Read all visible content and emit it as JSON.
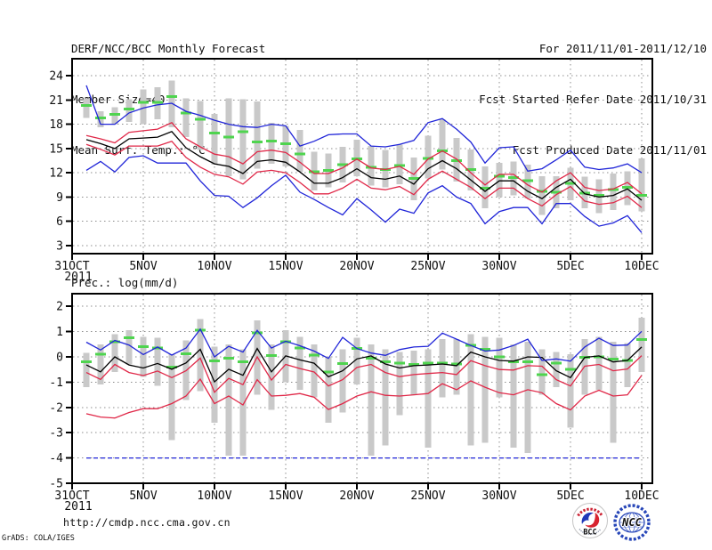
{
  "header": {
    "title": "DERF/NCC/BCC Monthly Forecast",
    "member_size": "Member Size=40",
    "for_range": "For 2011/11/01-2011/12/10",
    "fcst_refer": "Fcst Started Refer Date 2011/10/31",
    "fcst_produced": "Fcst Produced Date 2011/11/01"
  },
  "footer": {
    "url": "http://cmdp.ncc.cma.gov.cn",
    "credit": "GrADS: COLA/IGES",
    "logos": {
      "bcc_label": "BCC",
      "ncc_label": "NCC"
    }
  },
  "colors": {
    "ensemble_envelope": "#2025d8",
    "sd_band": "#e02848",
    "ensemble_mean": "#000000",
    "climatology_mean": "#4fd44f",
    "climatology_range": "#c9c9c9",
    "grid": "#8c8c8c",
    "axis": "#000000"
  },
  "chart_data": [
    {
      "type": "line",
      "title": "Mean Surf. Temp.: °C",
      "x_axis": "days from 31OCT2011, data daily 01NOV-10DEC",
      "first_data_day": 1,
      "xlim_days": [
        0,
        40.75
      ],
      "ylim": [
        2,
        26.1
      ],
      "y_ticks": [
        3,
        6,
        9,
        12,
        15,
        18,
        21,
        24
      ],
      "x_ticks": [
        {
          "day": 0,
          "label": "31OCT",
          "sublabel": "2011"
        },
        {
          "day": 5,
          "label": "5NOV"
        },
        {
          "day": 10,
          "label": "10NOV"
        },
        {
          "day": 15,
          "label": "15NOV"
        },
        {
          "day": 20,
          "label": "20NOV"
        },
        {
          "day": 25,
          "label": "25NOV"
        },
        {
          "day": 30,
          "label": "30NOV"
        },
        {
          "day": 35,
          "label": "5DEC"
        },
        {
          "day": 40,
          "label": "10DEC"
        }
      ],
      "series": [
        {
          "name": "climatology_range",
          "type": "bar",
          "color": "#c9c9c9",
          "low": [
            18.8,
            17.6,
            18.0,
            18.3,
            18.0,
            18.6,
            17.6,
            16.4,
            14.8,
            13.0,
            11.6,
            11.2,
            12.5,
            13.1,
            12.8,
            12.1,
            9.8,
            10.2,
            10.8,
            11.6,
            10.4,
            10.2,
            10.6,
            8.6,
            11.3,
            12.4,
            10.9,
            9.8,
            7.6,
            9.0,
            9.2,
            8.8,
            6.8,
            7.6,
            8.6,
            7.6,
            7.0,
            7.4,
            8.0,
            7.2
          ],
          "high": [
            21.2,
            19.6,
            20.1,
            21.1,
            22.3,
            22.6,
            23.4,
            21.2,
            20.9,
            19.3,
            21.2,
            21.1,
            20.8,
            18.2,
            17.8,
            17.3,
            14.6,
            14.4,
            15.2,
            16.1,
            15.3,
            14.8,
            15.5,
            13.9,
            16.6,
            18.6,
            16.3,
            14.9,
            12.8,
            13.2,
            13.4,
            13.0,
            11.6,
            11.6,
            12.6,
            11.5,
            11.2,
            11.9,
            12.2,
            13.8
          ]
        },
        {
          "name": "climatology_mean",
          "type": "marker",
          "color": "#4fd44f",
          "values": [
            20.3,
            18.8,
            19.2,
            19.9,
            20.7,
            20.7,
            21.4,
            19.4,
            18.6,
            16.9,
            16.4,
            17.1,
            15.8,
            15.9,
            15.6,
            14.3,
            12.1,
            12.3,
            13.0,
            13.7,
            12.7,
            12.4,
            12.9,
            11.3,
            13.8,
            14.7,
            13.5,
            12.4,
            10.1,
            11.6,
            11.4,
            11.0,
            9.7,
            9.6,
            10.7,
            9.5,
            9.2,
            9.9,
            10.2,
            9.2
          ]
        },
        {
          "name": "mean_minus_sd",
          "type": "line",
          "color": "#e02848",
          "values": [
            15.5,
            14.9,
            14.2,
            15.3,
            15.3,
            15.3,
            15.9,
            13.9,
            12.7,
            11.8,
            11.5,
            10.6,
            12.1,
            12.3,
            12.0,
            10.8,
            9.4,
            9.4,
            10.1,
            11.2,
            10.1,
            9.9,
            10.3,
            9.3,
            11.2,
            12.2,
            11.2,
            10.2,
            8.8,
            10.1,
            10.1,
            8.8,
            7.9,
            9.3,
            10.3,
            8.5,
            8.1,
            8.3,
            9.1,
            7.7
          ]
        },
        {
          "name": "mean_plus_sd",
          "type": "line",
          "color": "#e02848",
          "values": [
            16.6,
            16.2,
            15.7,
            17.0,
            17.2,
            17.4,
            18.2,
            16.2,
            15.2,
            14.3,
            14.0,
            13.1,
            14.6,
            14.8,
            14.5,
            13.3,
            11.9,
            11.9,
            12.6,
            13.7,
            12.6,
            12.4,
            12.8,
            11.8,
            13.7,
            14.7,
            13.7,
            12.0,
            10.5,
            11.8,
            11.8,
            10.5,
            9.6,
            11.0,
            12.0,
            10.2,
            9.8,
            10.0,
            10.8,
            9.4
          ]
        },
        {
          "name": "ensemble_mean",
          "type": "line",
          "color": "#000000",
          "values": [
            16.1,
            15.6,
            15.0,
            16.2,
            16.3,
            16.4,
            17.1,
            15.1,
            14.0,
            13.1,
            12.8,
            11.9,
            13.4,
            13.6,
            13.3,
            12.1,
            10.7,
            10.7,
            11.4,
            12.5,
            11.4,
            11.2,
            11.6,
            10.6,
            12.5,
            13.5,
            12.5,
            11.1,
            9.7,
            11.0,
            11.0,
            9.7,
            8.8,
            10.2,
            11.2,
            9.4,
            9.0,
            9.2,
            10.0,
            8.6
          ]
        },
        {
          "name": "ensemble_max",
          "type": "line",
          "color": "#2025d8",
          "values": [
            22.8,
            18.0,
            18.0,
            19.4,
            20.0,
            20.4,
            20.6,
            19.6,
            19.1,
            18.5,
            18.0,
            17.7,
            17.6,
            18.0,
            17.8,
            15.3,
            15.9,
            16.7,
            16.8,
            16.8,
            15.3,
            15.2,
            15.5,
            16.0,
            18.2,
            18.7,
            17.4,
            15.8,
            13.2,
            15.1,
            15.2,
            12.2,
            12.5,
            13.6,
            14.8,
            12.7,
            12.4,
            12.6,
            13.1,
            12.0
          ]
        },
        {
          "name": "ensemble_min",
          "type": "line",
          "color": "#2025d8",
          "values": [
            12.3,
            13.4,
            12.1,
            13.9,
            14.1,
            13.2,
            13.2,
            13.2,
            11.0,
            9.2,
            9.1,
            7.7,
            8.9,
            10.4,
            11.7,
            9.6,
            8.7,
            7.7,
            6.8,
            8.8,
            7.4,
            5.9,
            7.5,
            7.0,
            9.5,
            10.4,
            9.0,
            8.2,
            5.7,
            7.2,
            7.7,
            7.7,
            5.7,
            8.2,
            8.2,
            6.6,
            5.4,
            5.8,
            6.7,
            4.6
          ]
        }
      ]
    },
    {
      "type": "line",
      "title": "Prec.: log(mm/d)",
      "x_axis": "days from 31OCT2011, data daily 01NOV-10DEC",
      "first_data_day": 1,
      "xlim_days": [
        0,
        40.75
      ],
      "ylim": [
        -5,
        2.5
      ],
      "y_ticks": [
        -5,
        -4,
        -3,
        -2,
        -1,
        0,
        1,
        2
      ],
      "x_ticks": [
        {
          "day": 0,
          "label": "31OCT",
          "sublabel": "2011"
        },
        {
          "day": 5,
          "label": "5NOV"
        },
        {
          "day": 10,
          "label": "10NOV"
        },
        {
          "day": 15,
          "label": "15NOV"
        },
        {
          "day": 20,
          "label": "20NOV"
        },
        {
          "day": 25,
          "label": "25NOV"
        },
        {
          "day": 30,
          "label": "30NOV"
        },
        {
          "day": 35,
          "label": "5DEC"
        },
        {
          "day": 40,
          "label": "10DEC"
        }
      ],
      "series": [
        {
          "name": "climatology_range",
          "type": "bar",
          "color": "#c9c9c9",
          "low": [
            -1.2,
            -1.1,
            -0.6,
            -0.3,
            -0.8,
            -1.15,
            -3.3,
            -1.7,
            -1.35,
            -2.6,
            -3.9,
            -3.9,
            -1.5,
            -2.1,
            -1.0,
            -1.3,
            -1.6,
            -2.6,
            -2.2,
            -1.1,
            -3.9,
            -3.5,
            -2.3,
            -1.5,
            -3.6,
            -1.6,
            -1.5,
            -3.5,
            -3.4,
            -1.6,
            -3.6,
            -3.8,
            -1.5,
            -1.2,
            -2.8,
            -1.5,
            -1.3,
            -3.4,
            -1.2,
            -0.6
          ],
          "high": [
            0.15,
            0.5,
            0.9,
            1.05,
            0.8,
            0.75,
            0.1,
            0.65,
            1.5,
            0.4,
            0.5,
            0.3,
            1.45,
            0.5,
            1.05,
            0.8,
            0.5,
            0.0,
            0.3,
            0.75,
            0.5,
            0.3,
            0.2,
            0.25,
            0.3,
            0.7,
            0.7,
            0.9,
            0.8,
            0.75,
            0.5,
            0.6,
            0.3,
            0.2,
            0.1,
            0.7,
            0.8,
            0.6,
            0.55,
            1.55
          ]
        },
        {
          "name": "climatology_mean",
          "type": "marker",
          "color": "#4fd44f",
          "values": [
            -0.2,
            0.1,
            0.6,
            0.75,
            0.4,
            0.35,
            -0.4,
            0.12,
            1.05,
            -0.15,
            -0.05,
            -0.2,
            0.95,
            0.05,
            0.6,
            0.35,
            0.07,
            -0.6,
            -0.27,
            0.33,
            -0.05,
            -0.2,
            -0.25,
            -0.3,
            -0.25,
            -0.25,
            -0.28,
            0.45,
            0.3,
            0.0,
            -0.2,
            -0.2,
            -0.7,
            -0.25,
            -0.5,
            -0.02,
            0.0,
            -0.08,
            -0.14,
            0.68
          ]
        },
        {
          "name": "mean_minus_sd",
          "type": "line",
          "color": "#e02848",
          "values": [
            -2.25,
            -2.38,
            -2.42,
            -2.2,
            -2.05,
            -2.05,
            -1.85,
            -1.55,
            -0.88,
            -1.85,
            -1.55,
            -1.9,
            -0.9,
            -1.55,
            -1.52,
            -1.45,
            -1.6,
            -2.08,
            -1.85,
            -1.55,
            -1.38,
            -1.52,
            -1.55,
            -1.5,
            -1.45,
            -1.06,
            -1.3,
            -0.95,
            -1.2,
            -1.42,
            -1.5,
            -1.3,
            -1.42,
            -1.85,
            -2.1,
            -1.55,
            -1.32,
            -1.55,
            -1.5,
            -0.73
          ]
        },
        {
          "name": "mean_plus_sd",
          "type": "line",
          "color": "#e02848",
          "values": [
            -0.62,
            -0.89,
            -0.3,
            -0.62,
            -0.74,
            -0.56,
            -0.82,
            -0.55,
            -0.05,
            -1.4,
            -0.85,
            -1.1,
            0.0,
            -0.92,
            -0.3,
            -0.46,
            -0.6,
            -1.15,
            -0.9,
            -0.42,
            -0.3,
            -0.62,
            -0.78,
            -0.7,
            -0.66,
            -0.62,
            -0.7,
            -0.15,
            -0.35,
            -0.5,
            -0.52,
            -0.35,
            -0.37,
            -0.9,
            -1.15,
            -0.37,
            -0.3,
            -0.55,
            -0.48,
            0.05
          ]
        },
        {
          "name": "ensemble_mean",
          "type": "line",
          "color": "#000000",
          "values": [
            -0.32,
            -0.59,
            0.0,
            -0.32,
            -0.44,
            -0.26,
            -0.49,
            -0.24,
            0.3,
            -0.99,
            -0.49,
            -0.73,
            0.33,
            -0.59,
            0.04,
            -0.12,
            -0.25,
            -0.79,
            -0.55,
            -0.08,
            0.04,
            -0.28,
            -0.44,
            -0.35,
            -0.32,
            -0.28,
            -0.35,
            0.19,
            0.0,
            -0.14,
            -0.17,
            0.0,
            -0.02,
            -0.55,
            -0.82,
            -0.02,
            0.04,
            -0.2,
            -0.14,
            0.39
          ]
        },
        {
          "name": "ensemble_max",
          "type": "line",
          "color": "#2025d8",
          "values": [
            0.58,
            0.27,
            0.65,
            0.47,
            0.09,
            0.39,
            0.07,
            0.35,
            1.1,
            0.0,
            0.42,
            0.19,
            1.05,
            0.35,
            0.62,
            0.44,
            0.23,
            -0.06,
            0.77,
            0.33,
            0.15,
            0.06,
            0.29,
            0.39,
            0.42,
            0.94,
            0.7,
            0.45,
            0.23,
            0.27,
            0.45,
            0.7,
            -0.14,
            -0.08,
            -0.17,
            0.39,
            0.74,
            0.45,
            0.47,
            1.01
          ]
        },
        {
          "name": "ensemble_min",
          "type": "line",
          "color": "#2025d8",
          "dashed": true,
          "values": [
            -4,
            -4,
            -4,
            -4,
            -4,
            -4,
            -4,
            -4,
            -4,
            -4,
            -4,
            -4,
            -4,
            -4,
            -4,
            -4,
            -4,
            -4,
            -4,
            -4,
            -4,
            -4,
            -4,
            -4,
            -4,
            -4,
            -4,
            -4,
            -4,
            -4,
            -4,
            -4,
            -4,
            -4,
            -4,
            -4,
            -4,
            -4,
            -4,
            -4
          ]
        }
      ]
    }
  ]
}
